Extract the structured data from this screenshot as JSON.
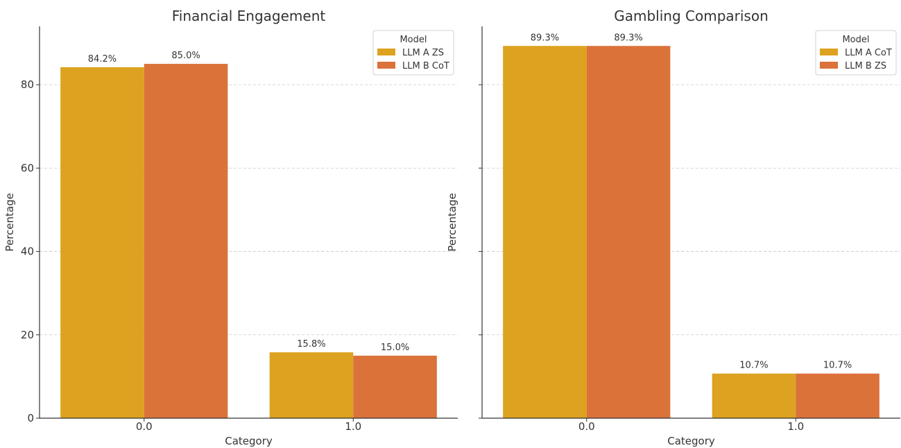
{
  "chart_data": [
    {
      "type": "bar",
      "title": "Financial Engagement",
      "xlabel": "Category",
      "ylabel": "Percentage",
      "categories": [
        "0.0",
        "1.0"
      ],
      "ylim": [
        0,
        94
      ],
      "yticks": [
        "0",
        "20",
        "40",
        "60",
        "80"
      ],
      "ytick_values": [
        0,
        20,
        40,
        60,
        80
      ],
      "grid": "horizontal dashed",
      "legend": {
        "title": "Model",
        "placement": "top-right"
      },
      "series": [
        {
          "name": "LLM A ZS",
          "color": "#DDA21F",
          "values": [
            84.2,
            15.8
          ],
          "labels": [
            "84.2%",
            "15.8%"
          ]
        },
        {
          "name": "LLM B CoT",
          "color": "#DB723A",
          "values": [
            85.0,
            15.0
          ],
          "labels": [
            "85.0%",
            "15.0%"
          ]
        }
      ]
    },
    {
      "type": "bar",
      "title": "Gambling Comparison",
      "xlabel": "Category",
      "ylabel": "Percentage",
      "categories": [
        "0.0",
        "1.0"
      ],
      "ylim": [
        0,
        94
      ],
      "yticks": [
        "",
        "",
        "",
        "",
        ""
      ],
      "ytick_values": [
        0,
        20,
        40,
        60,
        80
      ],
      "grid": "horizontal dashed",
      "legend": {
        "title": "Model",
        "placement": "top-right"
      },
      "series": [
        {
          "name": "LLM A CoT",
          "color": "#DDA21F",
          "values": [
            89.3,
            10.7
          ],
          "labels": [
            "89.3%",
            "10.7%"
          ]
        },
        {
          "name": "LLM B ZS",
          "color": "#DB723A",
          "values": [
            89.3,
            10.7
          ],
          "labels": [
            "89.3%",
            "10.7%"
          ]
        }
      ]
    }
  ]
}
